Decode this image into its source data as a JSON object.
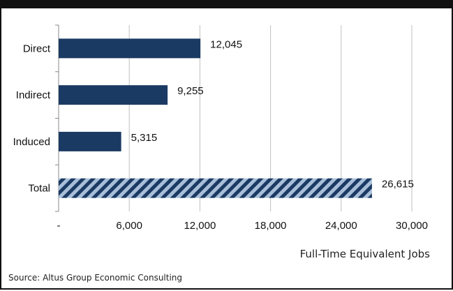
{
  "header_fragment": "",
  "chart_data": {
    "type": "bar",
    "orientation": "horizontal",
    "categories": [
      "Direct",
      "Indirect",
      "Induced",
      "Total"
    ],
    "values": [
      12045,
      9255,
      5315,
      26615
    ],
    "data_labels": [
      "12,045",
      "9,255",
      "5,315",
      "26,615"
    ],
    "xlabel": "Full-Time Equivalent Jobs",
    "ylabel": "",
    "xlim": [
      0,
      30000
    ],
    "xticks": [
      0,
      6000,
      12000,
      18000,
      24000,
      30000
    ],
    "xtick_labels": [
      "-",
      "6,000",
      "12,000",
      "18,000",
      "24,000",
      "30,000"
    ],
    "grid": "vertical",
    "bar_color": "#1b3a63",
    "total_bar_fill": "diagonal stripes",
    "total_stripe_colors": [
      "#1b3a63",
      "#a9bfd9"
    ],
    "grid_color": "#c0c0c0"
  },
  "source": "Source: Altus Group Economic Consulting"
}
